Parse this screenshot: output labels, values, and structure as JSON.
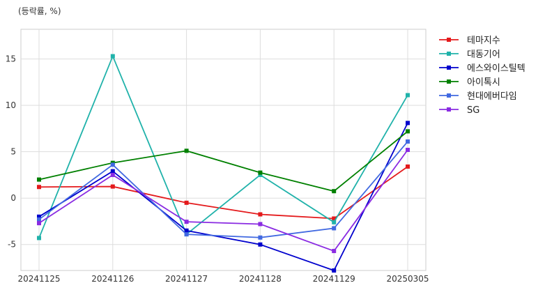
{
  "chart_data": {
    "type": "line",
    "unit_label": "(등락률, %)",
    "x": [
      "20241125",
      "20241126",
      "20241127",
      "20241128",
      "20241129",
      "20250305"
    ],
    "ylim": [
      -7.8,
      18.2
    ],
    "yticks": [
      -5,
      0,
      5,
      10,
      15
    ],
    "grid": true,
    "legend_position": "right",
    "series": [
      {
        "name": "테마지수",
        "color": "#e41a1c",
        "values": [
          1.2,
          1.25,
          -0.5,
          -1.75,
          -2.2,
          3.4
        ]
      },
      {
        "name": "대동기어",
        "color": "#20b2aa",
        "values": [
          -4.3,
          15.3,
          -3.9,
          2.5,
          -2.6,
          11.1
        ]
      },
      {
        "name": "에스와이스틸텍",
        "color": "#0000cd",
        "values": [
          -2.0,
          2.9,
          -3.5,
          -5.0,
          -7.8,
          8.1
        ]
      },
      {
        "name": "아이톡시",
        "color": "#008000",
        "values": [
          2.0,
          3.8,
          5.1,
          2.75,
          0.75,
          7.2
        ]
      },
      {
        "name": "현대에버다임",
        "color": "#4169e1",
        "values": [
          -2.3,
          3.6,
          -3.9,
          -4.25,
          -3.25,
          6.1
        ]
      },
      {
        "name": "SG",
        "color": "#8a2be2",
        "values": [
          -2.7,
          2.5,
          -2.55,
          -2.8,
          -5.7,
          5.2
        ]
      }
    ]
  }
}
